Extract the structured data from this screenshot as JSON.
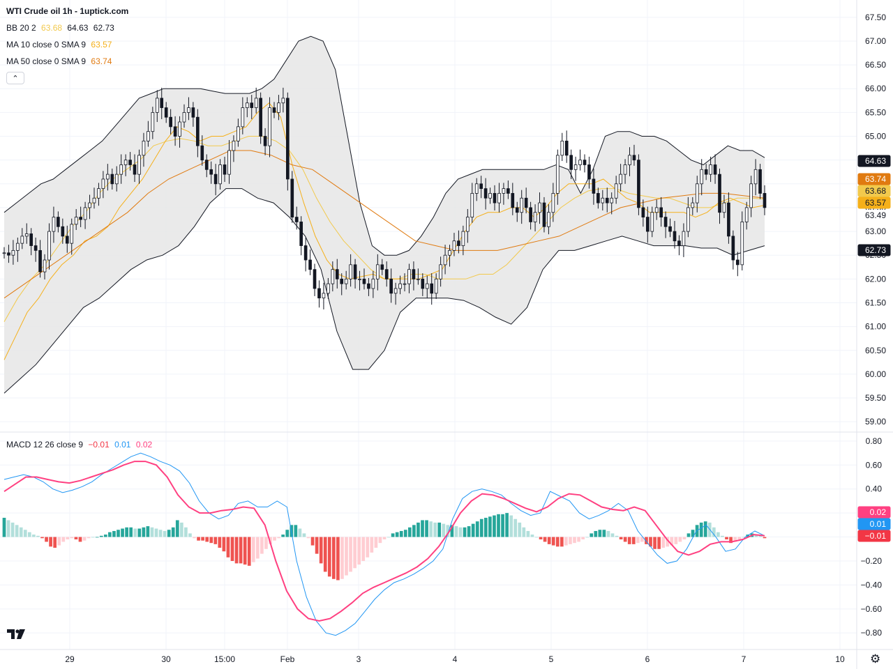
{
  "header": {
    "title": "WTI Crude oil  1h - 1uptick.com",
    "bb": {
      "name": "BB 20 2",
      "basis": "63.68",
      "upper": "64.63",
      "lower": "62.73"
    },
    "ma10": {
      "name": "MA 10 close 0 SMA 9",
      "value": "63.57"
    },
    "ma50": {
      "name": "MA 50 close 0 SMA 9",
      "value": "63.74"
    },
    "macd": {
      "name": "MACD 12 26 close 9",
      "hist": "−0.01",
      "macd": "0.01",
      "signal": "0.02"
    }
  },
  "colors": {
    "up": "#26a69a",
    "down": "#ef5350",
    "bb_band": "#e6e6e6",
    "bb_line": "#131722",
    "ma_basis": "#f2c94c",
    "ma10": "#f5b01a",
    "ma50": "#e07a10",
    "macd_line": "#2196f3",
    "signal_line": "#ff4081"
  },
  "icons": {
    "collapse": "chevron-up-icon",
    "logo": "tradingview-logo",
    "settings": "gear-icon"
  },
  "chart_data": [
    {
      "type": "candlestick",
      "title": "WTI Crude oil  1h - 1uptick.com",
      "x_ticks": [
        "29",
        "30",
        "15:00",
        "Feb",
        "3",
        "4",
        "5",
        "6",
        "7",
        "10"
      ],
      "y_ticks": [
        "67.50",
        "67.00",
        "66.50",
        "66.00",
        "65.50",
        "65.00",
        "64.50",
        "64.00",
        "63.50",
        "63.00",
        "62.50",
        "62.00",
        "61.50",
        "61.00",
        "60.50",
        "60.00",
        "59.50",
        "59.00"
      ],
      "ylim": [
        58.9,
        67.6
      ],
      "price_labels": [
        {
          "value": "64.63",
          "bg": "#131722",
          "fg": "#ffffff"
        },
        {
          "value": "63.74",
          "bg": "#e07a10",
          "fg": "#ffffff"
        },
        {
          "value": "63.68",
          "bg": "#f2c94c",
          "fg": "#131722"
        },
        {
          "value": "63.57",
          "bg": "#f5b01a",
          "fg": "#131722"
        },
        {
          "value": "63.49",
          "bg": "#ffffff",
          "fg": "#131722"
        },
        {
          "value": "62.73",
          "bg": "#131722",
          "fg": "#ffffff"
        }
      ],
      "close": [
        62.55,
        62.5,
        62.6,
        62.75,
        62.9,
        62.95,
        62.7,
        62.6,
        62.15,
        62.4,
        63.0,
        63.3,
        63.1,
        62.9,
        62.75,
        63.15,
        63.3,
        63.25,
        63.5,
        63.6,
        63.7,
        63.9,
        64.1,
        64.2,
        64.0,
        64.2,
        64.4,
        64.5,
        64.4,
        64.2,
        64.6,
        64.9,
        65.1,
        65.5,
        65.8,
        65.6,
        65.4,
        65.2,
        65.0,
        65.3,
        65.5,
        65.6,
        65.4,
        64.8,
        64.5,
        64.3,
        64.2,
        64.0,
        64.4,
        64.2,
        64.7,
        64.9,
        65.2,
        65.6,
        65.7,
        65.6,
        65.8,
        65.0,
        64.8,
        65.6,
        65.5,
        65.7,
        65.8,
        64.1,
        63.3,
        63.2,
        62.7,
        62.4,
        62.2,
        61.8,
        61.6,
        61.7,
        61.9,
        62.2,
        62.0,
        61.9,
        62.0,
        62.3,
        62.0,
        62.0,
        61.9,
        61.8,
        62.0,
        62.3,
        62.2,
        62.0,
        61.7,
        61.8,
        61.9,
        61.9,
        62.2,
        62.0,
        62.0,
        61.8,
        61.9,
        61.7,
        62.0,
        62.3,
        62.5,
        62.6,
        62.8,
        62.7,
        63.0,
        63.3,
        63.8,
        64.0,
        63.9,
        63.7,
        63.8,
        63.6,
        63.8,
        63.9,
        63.8,
        63.5,
        63.4,
        63.7,
        63.5,
        63.2,
        63.4,
        63.6,
        63.1,
        63.4,
        63.8,
        64.6,
        64.9,
        64.6,
        64.3,
        64.4,
        64.5,
        64.4,
        64.1,
        63.8,
        63.6,
        63.7,
        63.6,
        63.7,
        64.0,
        64.2,
        64.4,
        64.6,
        64.5,
        63.5,
        63.3,
        63.0,
        63.4,
        63.5,
        63.3,
        63.1,
        63.0,
        62.8,
        62.7,
        63.0,
        63.5,
        63.6,
        64.0,
        64.3,
        64.2,
        64.4,
        64.2,
        63.4,
        63.6,
        62.9,
        62.4,
        62.3,
        63.2,
        63.5,
        64.0,
        64.3,
        63.8,
        63.5
      ],
      "bb_upper": [
        63.4,
        63.6,
        63.8,
        64.0,
        64.1,
        64.3,
        64.5,
        64.7,
        64.9,
        65.2,
        65.5,
        65.8,
        65.9,
        66.0,
        66.0,
        66.0,
        66.0,
        65.95,
        65.9,
        65.9,
        65.9,
        66.0,
        66.2,
        66.6,
        67.0,
        67.1,
        67.0,
        66.4,
        65.0,
        63.6,
        62.7,
        62.5,
        62.5,
        62.6,
        62.9,
        63.3,
        63.8,
        64.1,
        64.2,
        64.3,
        64.3,
        64.3,
        64.3,
        64.3,
        64.3,
        64.4,
        64.3,
        63.8,
        64.3,
        65.0,
        65.1,
        65.1,
        65.0,
        65.0,
        64.9,
        64.7,
        64.5,
        64.4,
        64.6,
        64.8,
        64.7,
        64.7,
        64.55
      ],
      "bb_lower": [
        59.6,
        59.9,
        60.2,
        60.6,
        61.0,
        61.4,
        61.6,
        61.9,
        62.2,
        62.4,
        62.5,
        62.7,
        63.1,
        63.6,
        63.9,
        63.9,
        63.7,
        63.6,
        63.3,
        62.9,
        62.2,
        60.9,
        60.1,
        60.1,
        60.5,
        61.3,
        61.6,
        61.6,
        61.6,
        61.55,
        61.4,
        61.2,
        61.05,
        61.4,
        62.2,
        62.6,
        62.6,
        62.7,
        62.8,
        62.9,
        62.8,
        62.7,
        62.7,
        62.7,
        62.65,
        62.65,
        62.5,
        62.6,
        62.7
      ],
      "ma10": [
        60.3,
        60.8,
        61.3,
        61.6,
        62.0,
        62.3,
        62.5,
        62.8,
        62.9,
        63.1,
        63.5,
        63.8,
        64.1,
        64.5,
        64.9,
        65.2,
        65.1,
        64.9,
        65.0,
        65.0,
        65.1,
        65.2,
        65.5,
        65.7,
        65.4,
        64.4,
        63.6,
        62.9,
        62.4,
        62.1,
        62.0,
        62.05,
        62.1,
        62.0,
        62.0,
        62.0,
        62.0,
        62.1,
        62.2,
        62.6,
        63.0,
        63.3,
        63.4,
        63.4,
        63.5,
        63.5,
        63.3,
        63.5,
        63.8,
        64.0,
        64.0,
        64.0,
        64.1,
        63.9,
        63.7,
        63.6,
        63.4,
        63.4,
        63.4,
        63.4,
        63.3,
        63.4,
        63.6,
        63.7,
        63.6,
        63.5,
        63.55
      ],
      "ma50": [
        61.6,
        61.9,
        62.2,
        62.5,
        62.8,
        63.1,
        63.4,
        63.8,
        64.1,
        64.3,
        64.5,
        64.7,
        64.7,
        64.6,
        64.4,
        64.3,
        64.0,
        63.7,
        63.4,
        63.1,
        62.8,
        62.7,
        62.6,
        62.6,
        62.6,
        62.7,
        62.8,
        62.9,
        63.1,
        63.3,
        63.5,
        63.6,
        63.7,
        63.75,
        63.8,
        63.8,
        63.75,
        63.7
      ],
      "ma_basis": [
        61.1,
        61.6,
        62.0,
        62.3,
        62.7,
        63.1,
        63.4,
        63.8,
        64.1,
        64.3,
        64.5,
        64.8,
        64.9,
        64.95,
        64.9,
        64.8,
        64.8,
        64.9,
        65.0,
        65.0,
        64.9,
        64.7,
        64.3,
        63.7,
        63.2,
        62.8,
        62.5,
        62.2,
        62.0,
        62.0,
        62.1,
        62.1,
        62.0,
        62.0,
        62.0,
        62.1,
        62.1,
        62.3,
        62.6,
        62.9,
        63.2,
        63.5,
        63.7,
        63.85,
        63.9,
        63.9,
        63.8,
        63.75,
        63.7,
        63.7,
        63.6,
        63.5,
        63.5,
        63.6,
        63.7,
        63.7,
        63.68
      ]
    },
    {
      "type": "bar",
      "title": "MACD 12 26 close 9",
      "y_ticks": [
        "0.80",
        "0.60",
        "0.40",
        "0.20",
        "0.00",
        "−0.20",
        "−0.40",
        "−0.60",
        "−0.80"
      ],
      "ylim": [
        -0.88,
        0.84
      ],
      "price_labels": [
        {
          "value": "0.02",
          "bg": "#ff4081",
          "fg": "#ffffff"
        },
        {
          "value": "0.01",
          "bg": "#2196f3",
          "fg": "#ffffff"
        },
        {
          "value": "−0.01",
          "bg": "#f23645",
          "fg": "#ffffff"
        }
      ],
      "histogram": [
        0.16,
        0.14,
        0.12,
        0.1,
        0.08,
        0.06,
        0.04,
        0.02,
        0.01,
        -0.01,
        -0.04,
        -0.08,
        -0.09,
        -0.07,
        -0.04,
        -0.02,
        -0.01,
        -0.02,
        -0.04,
        -0.03,
        -0.01,
        0.0,
        0.0,
        0.01,
        0.02,
        0.04,
        0.05,
        0.06,
        0.07,
        0.08,
        0.08,
        0.07,
        0.07,
        0.08,
        0.09,
        0.08,
        0.07,
        0.06,
        0.05,
        0.06,
        0.08,
        0.14,
        0.12,
        0.08,
        0.03,
        -0.01,
        -0.03,
        -0.03,
        -0.04,
        -0.05,
        -0.06,
        -0.09,
        -0.12,
        -0.17,
        -0.2,
        -0.22,
        -0.22,
        -0.23,
        -0.24,
        -0.21,
        -0.18,
        -0.14,
        -0.1,
        -0.06,
        -0.03,
        -0.01,
        0.02,
        0.06,
        0.1,
        0.1,
        0.07,
        0.03,
        -0.01,
        -0.07,
        -0.14,
        -0.22,
        -0.29,
        -0.33,
        -0.35,
        -0.36,
        -0.35,
        -0.32,
        -0.29,
        -0.26,
        -0.23,
        -0.2,
        -0.17,
        -0.13,
        -0.09,
        -0.05,
        -0.02,
        0.0,
        0.03,
        0.04,
        0.05,
        0.06,
        0.08,
        0.1,
        0.12,
        0.14,
        0.14,
        0.13,
        0.12,
        0.12,
        0.11,
        0.1,
        0.1,
        0.09,
        0.08,
        0.08,
        0.09,
        0.11,
        0.13,
        0.15,
        0.16,
        0.17,
        0.18,
        0.19,
        0.19,
        0.2,
        0.18,
        0.15,
        0.12,
        0.08,
        0.05,
        0.02,
        0.0,
        -0.02,
        -0.04,
        -0.06,
        -0.07,
        -0.08,
        -0.08,
        -0.07,
        -0.06,
        -0.05,
        -0.04,
        -0.02,
        0.0,
        0.03,
        0.05,
        0.06,
        0.06,
        0.05,
        0.03,
        0.01,
        -0.02,
        -0.04,
        -0.06,
        -0.06,
        -0.05,
        -0.04,
        -0.06,
        -0.08,
        -0.1,
        -0.1,
        -0.09,
        -0.08,
        -0.07,
        -0.06,
        -0.04,
        -0.02,
        0.03,
        0.06,
        0.1,
        0.12,
        0.13,
        0.12,
        0.08,
        0.04,
        0.01,
        -0.02,
        -0.05,
        -0.04,
        -0.02,
        0.0,
        0.02,
        0.03,
        0.02,
        0.01,
        -0.01
      ],
      "macd": [
        0.48,
        0.5,
        0.52,
        0.5,
        0.46,
        0.4,
        0.37,
        0.39,
        0.42,
        0.46,
        0.52,
        0.57,
        0.62,
        0.67,
        0.7,
        0.67,
        0.63,
        0.6,
        0.55,
        0.45,
        0.3,
        0.2,
        0.15,
        0.18,
        0.28,
        0.3,
        0.25,
        0.25,
        0.3,
        0.25,
        -0.2,
        -0.5,
        -0.7,
        -0.8,
        -0.82,
        -0.78,
        -0.72,
        -0.62,
        -0.52,
        -0.44,
        -0.38,
        -0.35,
        -0.31,
        -0.26,
        -0.2,
        -0.1,
        0.15,
        0.32,
        0.38,
        0.4,
        0.38,
        0.35,
        0.28,
        0.22,
        0.18,
        0.2,
        0.38,
        0.34,
        0.3,
        0.2,
        0.15,
        0.18,
        0.22,
        0.28,
        0.22,
        0.05,
        -0.05,
        -0.15,
        -0.22,
        -0.2,
        -0.1,
        0.05,
        0.1,
        0.0,
        -0.12,
        -0.1,
        0.0,
        0.05,
        0.01
      ],
      "signal": [
        0.38,
        0.44,
        0.5,
        0.5,
        0.48,
        0.46,
        0.45,
        0.47,
        0.5,
        0.53,
        0.56,
        0.6,
        0.63,
        0.63,
        0.6,
        0.5,
        0.35,
        0.25,
        0.2,
        0.2,
        0.22,
        0.23,
        0.25,
        0.24,
        0.1,
        -0.2,
        -0.45,
        -0.6,
        -0.68,
        -0.7,
        -0.68,
        -0.62,
        -0.55,
        -0.47,
        -0.42,
        -0.38,
        -0.34,
        -0.3,
        -0.25,
        -0.18,
        -0.08,
        0.05,
        0.2,
        0.3,
        0.36,
        0.35,
        0.32,
        0.28,
        0.24,
        0.21,
        0.25,
        0.32,
        0.36,
        0.35,
        0.3,
        0.25,
        0.23,
        0.22,
        0.25,
        0.22,
        0.1,
        -0.02,
        -0.12,
        -0.15,
        -0.12,
        -0.06,
        -0.04,
        -0.04,
        -0.02,
        0.02,
        0.01
      ]
    }
  ]
}
